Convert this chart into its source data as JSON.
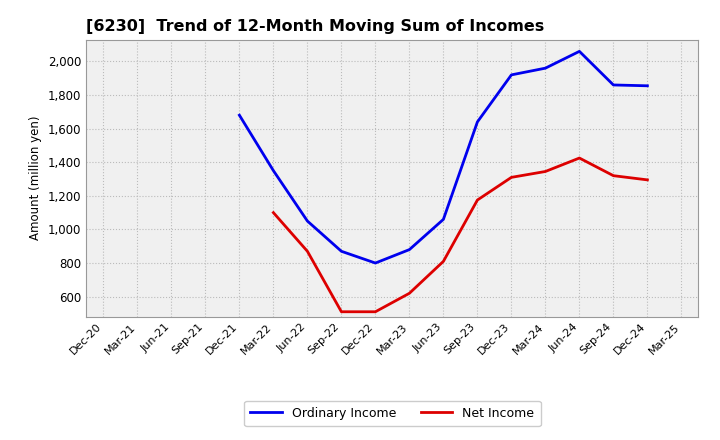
{
  "title": "[6230]  Trend of 12-Month Moving Sum of Incomes",
  "ylabel": "Amount (million yen)",
  "x_labels": [
    "Dec-20",
    "Mar-21",
    "Jun-21",
    "Sep-21",
    "Dec-21",
    "Mar-22",
    "Jun-22",
    "Sep-22",
    "Dec-22",
    "Mar-23",
    "Jun-23",
    "Sep-23",
    "Dec-23",
    "Mar-24",
    "Jun-24",
    "Sep-24",
    "Dec-24",
    "Mar-25"
  ],
  "ordinary_income": [
    null,
    null,
    null,
    null,
    1680,
    1350,
    1050,
    870,
    800,
    880,
    1060,
    1640,
    1920,
    1960,
    2060,
    1860,
    1855,
    null
  ],
  "net_income": [
    null,
    null,
    null,
    null,
    null,
    1100,
    870,
    510,
    510,
    620,
    810,
    1175,
    1310,
    1345,
    1425,
    1320,
    1295,
    null
  ],
  "ordinary_color": "#0000ee",
  "net_color": "#dd0000",
  "ylim_min": 480,
  "ylim_max": 2130,
  "yticks": [
    600,
    800,
    1000,
    1200,
    1400,
    1600,
    1800,
    2000
  ],
  "grid_color": "#bbbbbb",
  "bg_color": "#f0f0f0",
  "legend_ordinary": "Ordinary Income",
  "legend_net": "Net Income",
  "line_width": 2.0,
  "title_fontsize": 11.5
}
